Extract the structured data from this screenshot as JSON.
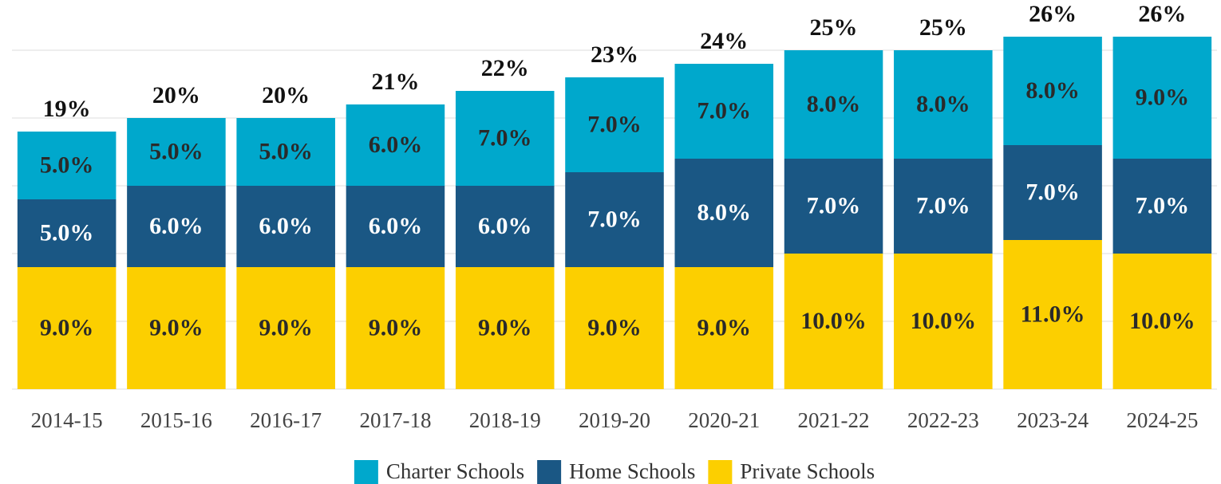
{
  "chart_data": {
    "type": "stacked-bar",
    "categories": [
      "2014-15",
      "2015-16",
      "2016-17",
      "2017-18",
      "2018-19",
      "2019-20",
      "2020-21",
      "2021-22",
      "2022-23",
      "2023-24",
      "2024-25"
    ],
    "series": [
      {
        "name": "Charter Schools",
        "color": "#00a8cc",
        "values": [
          5,
          5,
          5,
          6,
          7,
          7,
          7,
          8,
          8,
          8,
          9
        ],
        "value_labels": [
          "5.0%",
          "5.0%",
          "5.0%",
          "6.0%",
          "7.0%",
          "7.0%",
          "7.0%",
          "8.0%",
          "8.0%",
          "8.0%",
          "9.0%"
        ]
      },
      {
        "name": "Home Schools",
        "color": "#1a5784",
        "values": [
          5,
          6,
          6,
          6,
          6,
          7,
          8,
          7,
          7,
          7,
          7
        ],
        "value_labels": [
          "5.0%",
          "6.0%",
          "6.0%",
          "6.0%",
          "6.0%",
          "7.0%",
          "8.0%",
          "7.0%",
          "7.0%",
          "7.0%",
          "7.0%"
        ]
      },
      {
        "name": "Private Schools",
        "color": "#fccf00",
        "values": [
          9,
          9,
          9,
          9,
          9,
          9,
          9,
          10,
          10,
          11,
          10
        ],
        "value_labels": [
          "9.0%",
          "9.0%",
          "9.0%",
          "9.0%",
          "9.0%",
          "9.0%",
          "9.0%",
          "10.0%",
          "10.0%",
          "11.0%",
          "10.0%"
        ]
      }
    ],
    "totals": [
      19,
      20,
      20,
      21,
      22,
      23,
      24,
      25,
      25,
      26,
      26
    ],
    "total_labels": [
      "19%",
      "20%",
      "20%",
      "21%",
      "22%",
      "23%",
      "24%",
      "25%",
      "25%",
      "26%",
      "26%"
    ],
    "ylim": [
      0,
      28
    ],
    "yticks": [
      0,
      5,
      10,
      15,
      20,
      25
    ],
    "grid": true,
    "legend": "bottom"
  }
}
